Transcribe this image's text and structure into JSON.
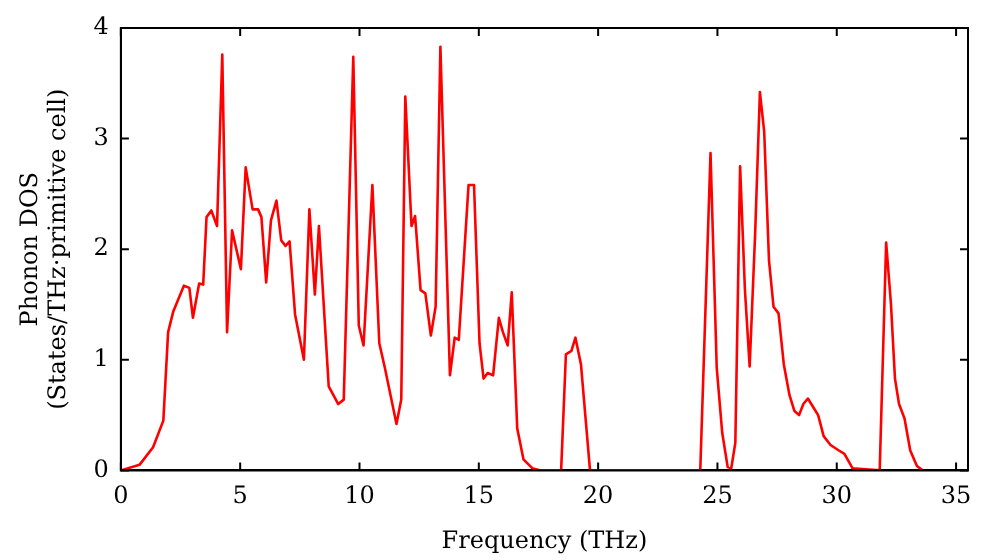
{
  "chart_data": {
    "type": "line",
    "xlabel": "Frequency (THz)",
    "ylabel": "Phonon DOS\n(States/THz·primitive cell)",
    "x": [
      0,
      0.78,
      1.35,
      1.78,
      1.98,
      2.2,
      2.64,
      2.87,
      3.02,
      3.28,
      3.45,
      3.59,
      3.79,
      4.03,
      4.25,
      4.45,
      4.66,
      5.03,
      5.23,
      5.52,
      5.75,
      5.89,
      6.09,
      6.29,
      6.52,
      6.72,
      6.9,
      7.07,
      7.3,
      7.67,
      7.9,
      8.13,
      8.3,
      8.71,
      9.11,
      9.34,
      9.74,
      9.97,
      10.17,
      10.54,
      10.83,
      11.06,
      11.55,
      11.75,
      11.92,
      12.18,
      12.33,
      12.56,
      12.76,
      12.99,
      13.19,
      13.39,
      13.79,
      13.99,
      14.16,
      14.57,
      14.8,
      15.03,
      15.2,
      15.37,
      15.6,
      15.84,
      16.01,
      16.21,
      16.38,
      16.61,
      16.87,
      17.24,
      17.59,
      18.45,
      18.65,
      18.88,
      19.05,
      19.28,
      19.66,
      24.28,
      24.71,
      24.97,
      25.2,
      25.43,
      25.58,
      25.75,
      25.95,
      26.15,
      26.35,
      26.58,
      26.78,
      26.96,
      27.16,
      27.35,
      27.56,
      27.78,
      28.02,
      28.22,
      28.42,
      28.6,
      28.79,
      28.99,
      29.22,
      29.45,
      29.74,
      30.09,
      30.32,
      30.66,
      31.8,
      32.07,
      32.27,
      32.44,
      32.61,
      32.84,
      33.08,
      33.36,
      33.6
    ],
    "series": [
      {
        "color": "#ff0000",
        "values": [
          0,
          0.05,
          0.21,
          0.45,
          1.25,
          1.44,
          1.67,
          1.65,
          1.38,
          1.69,
          1.68,
          2.29,
          2.35,
          2.21,
          3.76,
          1.25,
          2.17,
          1.82,
          2.74,
          2.36,
          2.36,
          2.29,
          1.7,
          2.26,
          2.44,
          2.08,
          2.03,
          2.07,
          1.41,
          1.0,
          2.36,
          1.59,
          2.21,
          0.76,
          0.6,
          0.64,
          3.74,
          1.31,
          1.13,
          2.58,
          1.15,
          0.93,
          0.42,
          0.64,
          3.38,
          2.21,
          2.3,
          1.63,
          1.6,
          1.22,
          1.48,
          3.83,
          0.86,
          1.2,
          1.18,
          2.58,
          2.58,
          1.15,
          0.83,
          0.88,
          0.86,
          1.38,
          1.25,
          1.13,
          1.61,
          0.38,
          0.1,
          0.02,
          0,
          0,
          1.05,
          1.08,
          1.2,
          0.96,
          0,
          0,
          2.87,
          0.93,
          0.34,
          0.03,
          0.02,
          0.25,
          2.75,
          1.64,
          0.94,
          2.14,
          3.42,
          3.06,
          1.9,
          1.48,
          1.42,
          0.96,
          0.68,
          0.54,
          0.5,
          0.6,
          0.65,
          0.58,
          0.5,
          0.31,
          0.23,
          0.18,
          0.15,
          0.02,
          0,
          2.06,
          1.51,
          0.83,
          0.6,
          0.47,
          0.18,
          0.04,
          0
        ]
      }
    ],
    "xlim": [
      0,
      35.5
    ],
    "xticks": [
      0,
      5,
      10,
      15,
      20,
      25,
      30,
      35
    ],
    "ylim": [
      0,
      4
    ],
    "yticks": [
      0,
      1,
      2,
      3,
      4
    ],
    "grid": false,
    "legend": false,
    "marker": "none",
    "line_style": "solid"
  }
}
